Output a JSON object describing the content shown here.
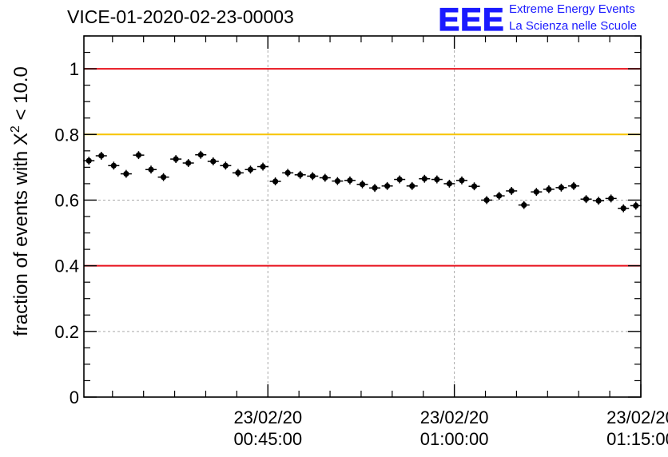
{
  "header": {
    "title": "VICE-01-2020-02-23-00003",
    "logo_text": "EEE",
    "logo_line1": "Extreme Energy Events",
    "logo_line2": "La Scienza nelle Scuole"
  },
  "colors": {
    "logo": "#1a1aff",
    "red_line": "#e8121d",
    "yellow_line": "#f7c400",
    "points": "#000000",
    "grid": "#aaaaaa"
  },
  "chart_data": {
    "type": "scatter",
    "title": "VICE-01-2020-02-23-00003",
    "ylabel_prefix": "fraction of events with ",
    "ylabel_symbol": "X",
    "ylabel_superscript": "2",
    "ylabel_suffix": " < 10.0",
    "xlabel": "",
    "xlim_minutes": [
      30.2,
      75.0
    ],
    "ylim": [
      0,
      1.1
    ],
    "yticks": [
      {
        "value": 0,
        "label": "0"
      },
      {
        "value": 0.2,
        "label": "0.2"
      },
      {
        "value": 0.4,
        "label": "0.4"
      },
      {
        "value": 0.6,
        "label": "0.6"
      },
      {
        "value": 0.8,
        "label": "0.8"
      },
      {
        "value": 1,
        "label": "1"
      }
    ],
    "xticks": [
      {
        "minute": 45,
        "date": "23/02/20",
        "time": "00:45:00"
      },
      {
        "minute": 60,
        "date": "23/02/20",
        "time": "01:00:00"
      },
      {
        "minute": 75,
        "date": "23/02/20",
        "time": "01:15:00"
      }
    ],
    "reference_lines": [
      {
        "y": 1.0,
        "color": "#e8121d"
      },
      {
        "y": 0.8,
        "color": "#f7c400"
      },
      {
        "y": 0.4,
        "color": "#e8121d"
      }
    ],
    "grid": true,
    "x_minutes": [
      30.6,
      31.6,
      32.6,
      33.6,
      34.6,
      35.6,
      36.6,
      37.6,
      38.6,
      39.6,
      40.6,
      41.6,
      42.6,
      43.6,
      44.6,
      45.6,
      46.6,
      47.6,
      48.6,
      49.6,
      50.6,
      51.6,
      52.6,
      53.6,
      54.6,
      55.6,
      56.6,
      57.6,
      58.6,
      59.6,
      60.6,
      61.6,
      62.6,
      63.6,
      64.6,
      65.6,
      66.6,
      67.6,
      68.6,
      69.6,
      70.6,
      71.6,
      72.6,
      73.6,
      74.6
    ],
    "y": [
      0.72,
      0.735,
      0.705,
      0.68,
      0.737,
      0.693,
      0.67,
      0.725,
      0.713,
      0.738,
      0.718,
      0.705,
      0.683,
      0.693,
      0.702,
      0.657,
      0.683,
      0.677,
      0.673,
      0.668,
      0.658,
      0.66,
      0.648,
      0.637,
      0.643,
      0.663,
      0.643,
      0.665,
      0.663,
      0.65,
      0.66,
      0.642,
      0.6,
      0.613,
      0.628,
      0.585,
      0.625,
      0.633,
      0.638,
      0.643,
      0.603,
      0.598,
      0.605,
      0.575,
      0.583
    ],
    "y_err": 0.012,
    "x_halfwidth_minutes": 0.45
  }
}
